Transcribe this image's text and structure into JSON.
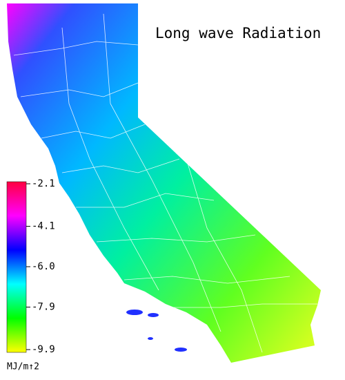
{
  "title": "Long wave Radiation",
  "colorbar": {
    "lim": [
      -2.1,
      -9.9
    ],
    "ticks": [
      -2.1,
      -4.1,
      {
        "value": -6,
        "label": "-6.0"
      },
      -7.9,
      -9.9
    ],
    "colors": [
      "#ff0040",
      "#ff00ff",
      "#0000ff",
      "#00ffff",
      "#00ff00",
      "#ffff00"
    ],
    "unit": "MJ/m↑2"
  }
}
